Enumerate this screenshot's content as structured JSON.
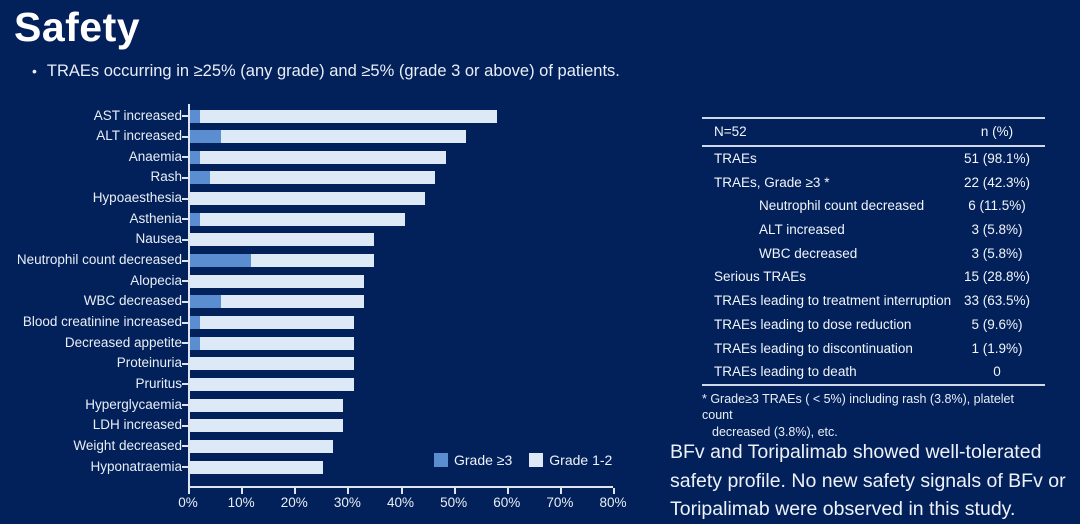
{
  "header": {
    "title": "Safety",
    "bullet": "TRAEs occurring in ≥25% (any grade) and ≥5% (grade 3 or above) of patients."
  },
  "colors": {
    "background": "#02215a",
    "grade3": "#5b8ed1",
    "grade12": "#dde9f6",
    "axis": "#dfe5ef"
  },
  "chart_data": {
    "type": "bar",
    "orientation": "horizontal",
    "categories": [
      "AST increased",
      "ALT increased",
      "Anaemia",
      "Rash",
      "Hypoaesthesia",
      "Asthenia",
      "Nausea",
      "Neutrophil count decreased",
      "Alopecia",
      "WBC decreased",
      "Blood creatinine increased",
      "Decreased appetite",
      "Proteinuria",
      "Pruritus",
      "Hyperglycaemia",
      "LDH increased",
      "Weight decreased",
      "Hyponatraemia"
    ],
    "series": [
      {
        "name": "Grade ≥3",
        "color": "#5b8ed1",
        "values": [
          1.9,
          5.8,
          1.9,
          3.8,
          0,
          1.9,
          0,
          11.5,
          0,
          5.8,
          1.9,
          1.9,
          0,
          0,
          0,
          0,
          0,
          0
        ]
      },
      {
        "name": "Grade 1-2",
        "color": "#dde9f6",
        "values": [
          55.8,
          46.1,
          46.2,
          42.4,
          44.2,
          38.5,
          34.6,
          23.1,
          32.7,
          26.9,
          28.9,
          28.9,
          30.8,
          30.8,
          28.8,
          28.8,
          26.9,
          25.0
        ]
      }
    ],
    "totals": [
      57.7,
      51.9,
      48.1,
      46.2,
      44.2,
      40.4,
      34.6,
      34.6,
      32.7,
      32.7,
      30.8,
      30.8,
      30.8,
      30.8,
      28.8,
      28.8,
      26.9,
      25.0
    ],
    "xlim": [
      0,
      80
    ],
    "x_tick_labels": [
      "0%",
      "10%",
      "20%",
      "30%",
      "40%",
      "50%",
      "60%",
      "70%",
      "80%"
    ],
    "legend": [
      {
        "label": "Grade ≥3",
        "color": "#5b8ed1"
      },
      {
        "label": "Grade 1-2",
        "color": "#dde9f6"
      }
    ],
    "legend_position": "lower right",
    "grid": false
  },
  "table": {
    "header": {
      "left": "N=52",
      "right": "n (%)"
    },
    "rows": [
      {
        "label": "TRAEs",
        "value": "51 (98.1%)",
        "indent": false
      },
      {
        "label": "TRAEs, Grade ≥3 *",
        "value": "22 (42.3%)",
        "indent": false
      },
      {
        "label": "Neutrophil count decreased",
        "value": "6 (11.5%)",
        "indent": true
      },
      {
        "label": "ALT increased",
        "value": "3 (5.8%)",
        "indent": true
      },
      {
        "label": "WBC decreased",
        "value": "3 (5.8%)",
        "indent": true
      },
      {
        "label": "Serious TRAEs",
        "value": "15 (28.8%)",
        "indent": false
      },
      {
        "label": "TRAEs leading to treatment interruption",
        "value": "33 (63.5%)",
        "indent": false
      },
      {
        "label": "TRAEs leading to dose reduction",
        "value": "5 (9.6%)",
        "indent": false
      },
      {
        "label": "TRAEs leading to discontinuation",
        "value": "1 (1.9%)",
        "indent": false
      },
      {
        "label": "TRAEs leading to death",
        "value": "0",
        "indent": false
      }
    ],
    "footnote_lines": [
      "* Grade≥3 TRAEs ( < 5%) including rash (3.8%), platelet count",
      "decreased (3.8%), etc."
    ]
  },
  "conclusion": {
    "lines": [
      "BFv and Toripalimab showed well-tolerated",
      "safety profile. No new safety signals of BFv or",
      "Toripalimab were observed in this study."
    ]
  }
}
